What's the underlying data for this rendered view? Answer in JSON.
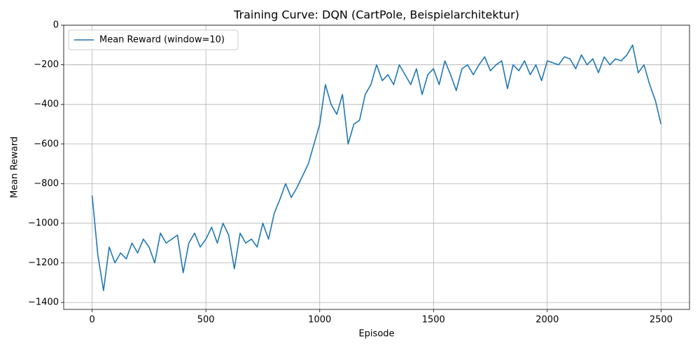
{
  "chart_data": {
    "type": "line",
    "title": "Training Curve: DQN (CartPole, Beispielarchitektur)",
    "xlabel": "Episode",
    "ylabel": "Mean Reward",
    "x": [
      0,
      25,
      50,
      75,
      100,
      125,
      150,
      175,
      200,
      225,
      250,
      275,
      300,
      325,
      350,
      375,
      400,
      425,
      450,
      475,
      500,
      525,
      550,
      575,
      600,
      625,
      650,
      675,
      700,
      725,
      750,
      775,
      800,
      825,
      850,
      875,
      900,
      925,
      950,
      975,
      1000,
      1025,
      1050,
      1075,
      1100,
      1125,
      1150,
      1175,
      1200,
      1225,
      1250,
      1275,
      1300,
      1325,
      1350,
      1375,
      1400,
      1425,
      1450,
      1475,
      1500,
      1525,
      1550,
      1575,
      1600,
      1625,
      1650,
      1675,
      1700,
      1725,
      1750,
      1775,
      1800,
      1825,
      1850,
      1875,
      1900,
      1925,
      1950,
      1975,
      2000,
      2025,
      2050,
      2075,
      2100,
      2125,
      2150,
      2175,
      2200,
      2225,
      2250,
      2275,
      2300,
      2325,
      2350,
      2375,
      2400,
      2425,
      2450,
      2475,
      2500
    ],
    "series": [
      {
        "name": "Mean Reward (window=10)",
        "color": "#1f77b4",
        "values": [
          -860,
          -1160,
          -1340,
          -1120,
          -1200,
          -1150,
          -1180,
          -1100,
          -1150,
          -1080,
          -1120,
          -1200,
          -1050,
          -1100,
          -1080,
          -1060,
          -1250,
          -1100,
          -1050,
          -1120,
          -1080,
          -1020,
          -1100,
          -1000,
          -1060,
          -1230,
          -1050,
          -1100,
          -1080,
          -1120,
          -1000,
          -1080,
          -950,
          -880,
          -800,
          -870,
          -820,
          -760,
          -700,
          -600,
          -500,
          -300,
          -400,
          -450,
          -350,
          -600,
          -500,
          -480,
          -350,
          -300,
          -200,
          -280,
          -250,
          -300,
          -200,
          -250,
          -300,
          -220,
          -350,
          -250,
          -220,
          -300,
          -180,
          -250,
          -330,
          -220,
          -200,
          -250,
          -200,
          -160,
          -230,
          -200,
          -180,
          -320,
          -200,
          -230,
          -180,
          -250,
          -200,
          -280,
          -180,
          -190,
          -200,
          -160,
          -170,
          -220,
          -150,
          -200,
          -170,
          -240,
          -160,
          -200,
          -170,
          -180,
          -150,
          -100,
          -240,
          -200,
          -300,
          -380,
          -500
        ]
      }
    ],
    "xlim": [
      -125,
      2625
    ],
    "ylim": [
      -1435,
      0
    ],
    "xticks": [
      0,
      500,
      1000,
      1500,
      2000,
      2500
    ],
    "yticks": [
      0,
      {
        "value": -200,
        "label": "−200"
      },
      {
        "value": -400,
        "label": "−400"
      },
      {
        "value": -600,
        "label": "−600"
      },
      {
        "value": -800,
        "label": "−800"
      },
      {
        "value": -1000,
        "label": "−1000"
      },
      {
        "value": -1200,
        "label": "−1200"
      },
      {
        "value": -1400,
        "label": "−1400"
      }
    ],
    "grid": true,
    "legend": "upper-left"
  }
}
